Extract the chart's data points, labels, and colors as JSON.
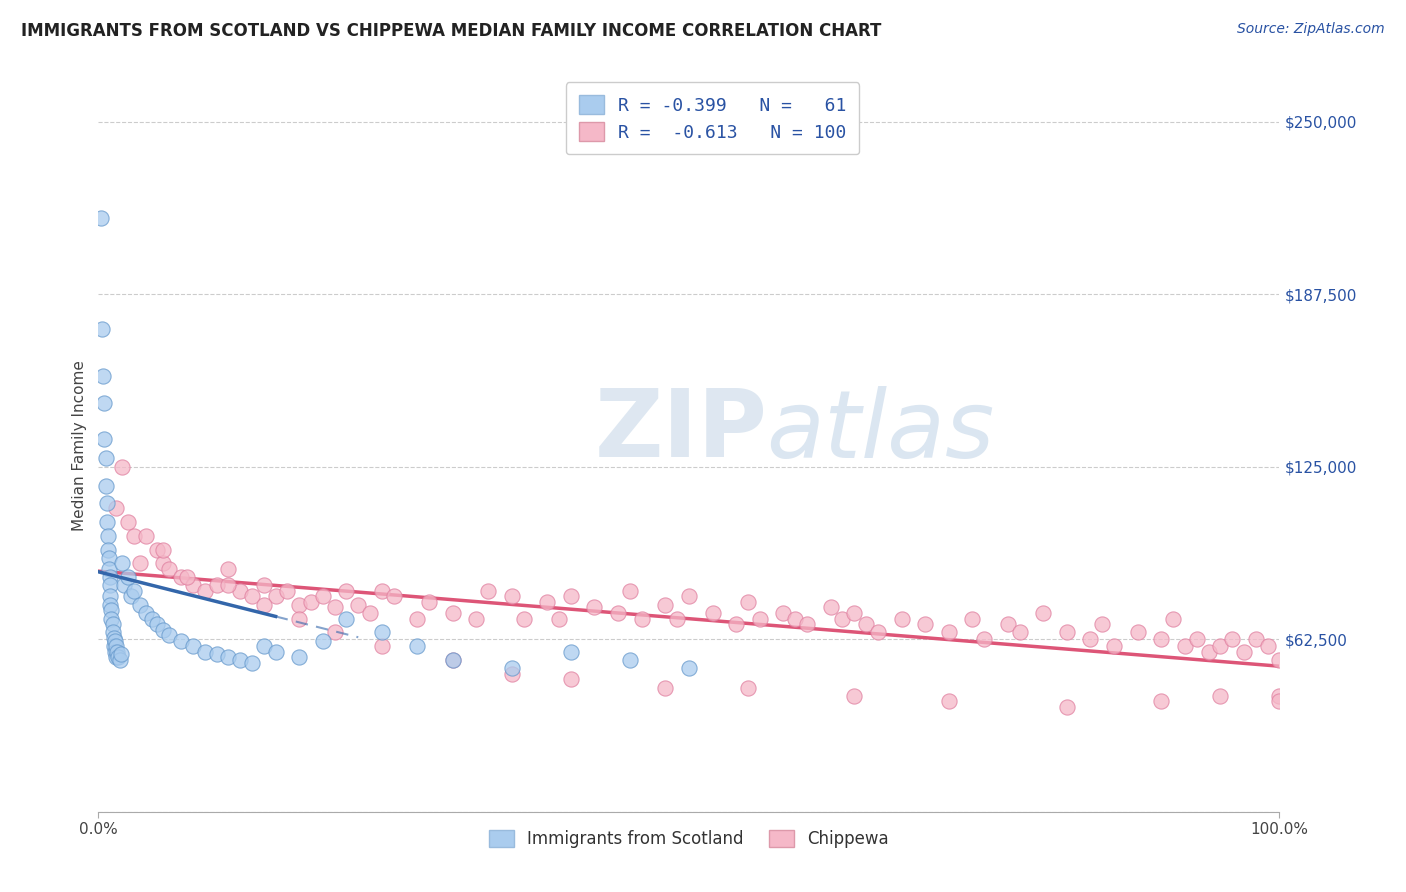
{
  "title": "IMMIGRANTS FROM SCOTLAND VS CHIPPEWA MEDIAN FAMILY INCOME CORRELATION CHART",
  "source": "Source: ZipAtlas.com",
  "ylabel": "Median Family Income",
  "y_ticks": [
    0,
    62500,
    125000,
    187500,
    250000
  ],
  "y_tick_labels": [
    "",
    "$62,500",
    "$125,000",
    "$187,500",
    "$250,000"
  ],
  "x_min": 0.0,
  "x_max": 100.0,
  "y_min": 0,
  "y_max": 265000,
  "blue_color": "#aaccee",
  "blue_edge_color": "#6699cc",
  "blue_line_color": "#3366aa",
  "pink_color": "#f5b8c8",
  "pink_edge_color": "#e080a0",
  "pink_line_color": "#dd5577",
  "legend_text_color": "#2952a3",
  "watermark_zip": "ZIP",
  "watermark_atlas": "atlas",
  "scotland_x": [
    0.2,
    0.3,
    0.4,
    0.5,
    0.5,
    0.6,
    0.6,
    0.7,
    0.7,
    0.8,
    0.8,
    0.9,
    0.9,
    1.0,
    1.0,
    1.0,
    1.0,
    1.1,
    1.1,
    1.2,
    1.2,
    1.3,
    1.3,
    1.4,
    1.4,
    1.5,
    1.5,
    1.6,
    1.7,
    1.8,
    1.9,
    2.0,
    2.2,
    2.5,
    2.8,
    3.0,
    3.5,
    4.0,
    4.5,
    5.0,
    5.5,
    6.0,
    7.0,
    8.0,
    9.0,
    10.0,
    11.0,
    12.0,
    13.0,
    14.0,
    15.0,
    17.0,
    19.0,
    21.0,
    24.0,
    27.0,
    30.0,
    35.0,
    40.0,
    45.0,
    50.0
  ],
  "scotland_y": [
    215000,
    175000,
    158000,
    148000,
    135000,
    128000,
    118000,
    112000,
    105000,
    100000,
    95000,
    92000,
    88000,
    85000,
    82000,
    78000,
    75000,
    73000,
    70000,
    68000,
    65000,
    63000,
    60000,
    62000,
    58000,
    56000,
    60000,
    58000,
    56000,
    55000,
    57000,
    90000,
    82000,
    85000,
    78000,
    80000,
    75000,
    72000,
    70000,
    68000,
    66000,
    64000,
    62000,
    60000,
    58000,
    57000,
    56000,
    55000,
    54000,
    60000,
    58000,
    56000,
    62000,
    70000,
    65000,
    60000,
    55000,
    52000,
    58000,
    55000,
    52000
  ],
  "chippewa_x": [
    1.5,
    2.0,
    2.5,
    3.0,
    4.0,
    5.0,
    5.5,
    6.0,
    7.0,
    8.0,
    9.0,
    10.0,
    11.0,
    12.0,
    13.0,
    14.0,
    15.0,
    16.0,
    17.0,
    18.0,
    19.0,
    20.0,
    21.0,
    22.0,
    23.0,
    24.0,
    25.0,
    27.0,
    28.0,
    30.0,
    32.0,
    33.0,
    35.0,
    36.0,
    38.0,
    39.0,
    40.0,
    42.0,
    44.0,
    45.0,
    46.0,
    48.0,
    49.0,
    50.0,
    52.0,
    54.0,
    55.0,
    56.0,
    58.0,
    59.0,
    60.0,
    62.0,
    63.0,
    64.0,
    65.0,
    66.0,
    68.0,
    70.0,
    72.0,
    74.0,
    75.0,
    77.0,
    78.0,
    80.0,
    82.0,
    84.0,
    85.0,
    86.0,
    88.0,
    90.0,
    91.0,
    92.0,
    93.0,
    94.0,
    95.0,
    96.0,
    97.0,
    98.0,
    99.0,
    100.0,
    3.5,
    5.5,
    7.5,
    11.0,
    14.0,
    17.0,
    20.0,
    24.0,
    30.0,
    35.0,
    40.0,
    48.0,
    55.0,
    64.0,
    72.0,
    82.0,
    90.0,
    95.0,
    100.0,
    100.0
  ],
  "chippewa_y": [
    110000,
    125000,
    105000,
    100000,
    100000,
    95000,
    90000,
    88000,
    85000,
    82000,
    80000,
    82000,
    88000,
    80000,
    78000,
    82000,
    78000,
    80000,
    75000,
    76000,
    78000,
    74000,
    80000,
    75000,
    72000,
    80000,
    78000,
    70000,
    76000,
    72000,
    70000,
    80000,
    78000,
    70000,
    76000,
    70000,
    78000,
    74000,
    72000,
    80000,
    70000,
    75000,
    70000,
    78000,
    72000,
    68000,
    76000,
    70000,
    72000,
    70000,
    68000,
    74000,
    70000,
    72000,
    68000,
    65000,
    70000,
    68000,
    65000,
    70000,
    62500,
    68000,
    65000,
    72000,
    65000,
    62500,
    68000,
    60000,
    65000,
    62500,
    70000,
    60000,
    62500,
    58000,
    60000,
    62500,
    58000,
    62500,
    60000,
    55000,
    90000,
    95000,
    85000,
    82000,
    75000,
    70000,
    65000,
    60000,
    55000,
    50000,
    48000,
    45000,
    45000,
    42000,
    40000,
    38000,
    40000,
    42000,
    42000,
    40000
  ]
}
